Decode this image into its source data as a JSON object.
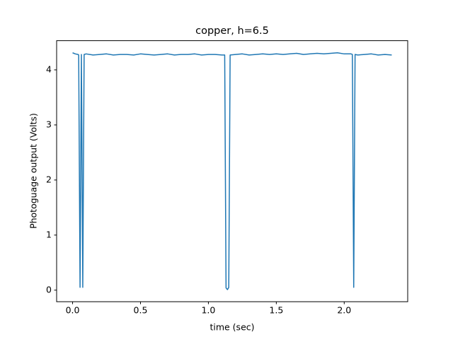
{
  "chart_data": {
    "type": "line",
    "title": "copper, h=6.5",
    "x_label": "time (sec)",
    "y_label": "Photoguage output (Volts)",
    "color": "#1f77b4",
    "x": [
      0,
      0.02,
      0.04,
      0.045,
      0.055,
      0.065,
      0.075,
      0.085,
      0.1,
      0.15,
      0.2,
      0.25,
      0.3,
      0.35,
      0.4,
      0.45,
      0.5,
      0.55,
      0.6,
      0.65,
      0.7,
      0.75,
      0.8,
      0.85,
      0.9,
      0.95,
      1.0,
      1.05,
      1.1,
      1.12,
      1.13,
      1.14,
      1.15,
      1.16,
      1.2,
      1.25,
      1.3,
      1.35,
      1.4,
      1.45,
      1.5,
      1.55,
      1.6,
      1.65,
      1.7,
      1.75,
      1.8,
      1.85,
      1.9,
      1.95,
      2.0,
      2.05,
      2.06,
      2.07,
      2.08,
      2.1,
      2.15,
      2.2,
      2.25,
      2.3,
      2.35
    ],
    "values": [
      4.31,
      4.29,
      4.28,
      4.27,
      0.05,
      4.28,
      0.05,
      4.28,
      4.29,
      4.27,
      4.28,
      4.29,
      4.27,
      4.28,
      4.28,
      4.27,
      4.29,
      4.28,
      4.27,
      4.28,
      4.29,
      4.27,
      4.28,
      4.28,
      4.29,
      4.27,
      4.28,
      4.28,
      4.27,
      4.27,
      0.04,
      0.01,
      0.05,
      4.27,
      4.28,
      4.29,
      4.27,
      4.28,
      4.29,
      4.28,
      4.29,
      4.28,
      4.29,
      4.3,
      4.28,
      4.29,
      4.3,
      4.29,
      4.3,
      4.31,
      4.29,
      4.29,
      4.28,
      0.05,
      4.28,
      4.27,
      4.28,
      4.29,
      4.27,
      4.28,
      4.27
    ],
    "xlim": [
      -0.1175,
      2.4675
    ],
    "xticks": [
      {
        "value": 0,
        "label": "0.0"
      },
      0.5,
      {
        "value": 1,
        "label": "1.0"
      },
      1.5,
      {
        "value": 2,
        "label": "2.0"
      }
    ],
    "ylim": [
      -0.21,
      4.53
    ],
    "yticks": [
      0,
      1,
      2,
      3,
      4
    ]
  }
}
